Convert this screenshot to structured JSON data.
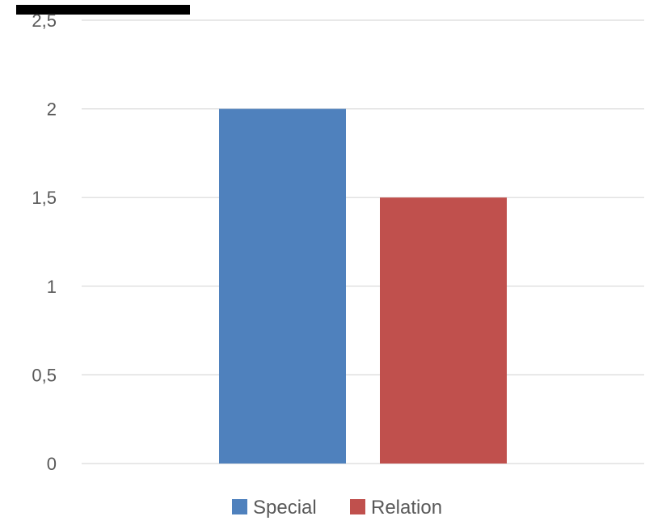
{
  "chart_data": {
    "type": "bar",
    "title": "",
    "xlabel": "",
    "ylabel": "",
    "categories": [
      ""
    ],
    "ylim": [
      0,
      2.5
    ],
    "yticks": [
      0,
      0.5,
      1,
      1.5,
      2,
      2.5
    ],
    "ytick_labels": [
      "0",
      "0,5",
      "1",
      "1,5",
      "2",
      "2,5"
    ],
    "grid": true,
    "legend_position": "bottom",
    "series": [
      {
        "name": "Special",
        "values": [
          2
        ],
        "color": "#4F81BD"
      },
      {
        "name": "Relation",
        "values": [
          1.5
        ],
        "color": "#C0504D"
      }
    ]
  },
  "colors": {
    "gridline": "#D9D9D9",
    "text": "#595959",
    "redaction_bar": "#000000"
  }
}
